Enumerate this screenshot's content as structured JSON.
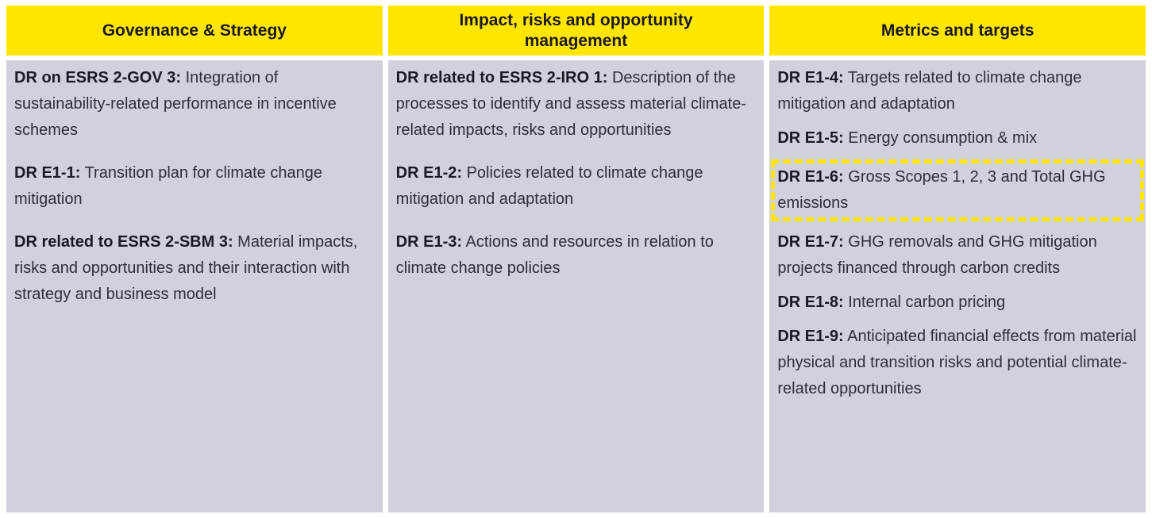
{
  "colors": {
    "header_yellow": "#FFE600",
    "body_gray": "#D1D1DB",
    "highlight_border_yellow": "#FFE600",
    "text_dark": "#2e2e38",
    "label_black": "#1a1a24"
  },
  "columns": [
    {
      "header": "Governance & Strategy",
      "items": [
        {
          "label": "DR on ESRS 2-GOV 3:",
          "text": "Integration of sustainability-related performance in incentive schemes",
          "highlighted": false
        },
        {
          "label": "DR E1-1:",
          "text": "Transition plan for climate change mitigation",
          "highlighted": false
        },
        {
          "label": "DR related to ESRS 2-SBM 3:",
          "text": "Material impacts, risks and opportunities and their interaction with strategy and business model",
          "highlighted": false
        }
      ]
    },
    {
      "header": "Impact, risks and opportunity management",
      "items": [
        {
          "label": "DR related to ESRS 2-IRO 1:",
          "text": "Description of the processes to identify and assess material climate-related impacts, risks and opportunities",
          "highlighted": false
        },
        {
          "label": "DR E1-2:",
          "text": "Policies related to climate change mitigation and adaptation",
          "highlighted": false
        },
        {
          "label": "DR E1-3:",
          "text": "Actions and resources in relation to climate change policies",
          "highlighted": false
        }
      ]
    },
    {
      "header": "Metrics and targets",
      "items": [
        {
          "label": "DR E1-4:",
          "text": "Targets related to climate change mitigation and adaptation",
          "highlighted": false
        },
        {
          "label": "DR E1-5:",
          "text": "Energy consumption & mix",
          "highlighted": false
        },
        {
          "label": "DR E1-6:",
          "text": "Gross Scopes 1, 2, 3 and Total GHG emissions",
          "highlighted": true
        },
        {
          "label": "DR E1-7:",
          "text": "GHG removals and GHG mitigation projects financed through carbon credits",
          "highlighted": false
        },
        {
          "label": "DR E1-8:",
          "text": "Internal carbon pricing",
          "highlighted": false
        },
        {
          "label": "DR E1-9:",
          "text": "Anticipated financial effects from material physical and transition risks and potential climate-related opportunities",
          "highlighted": false
        }
      ]
    }
  ]
}
